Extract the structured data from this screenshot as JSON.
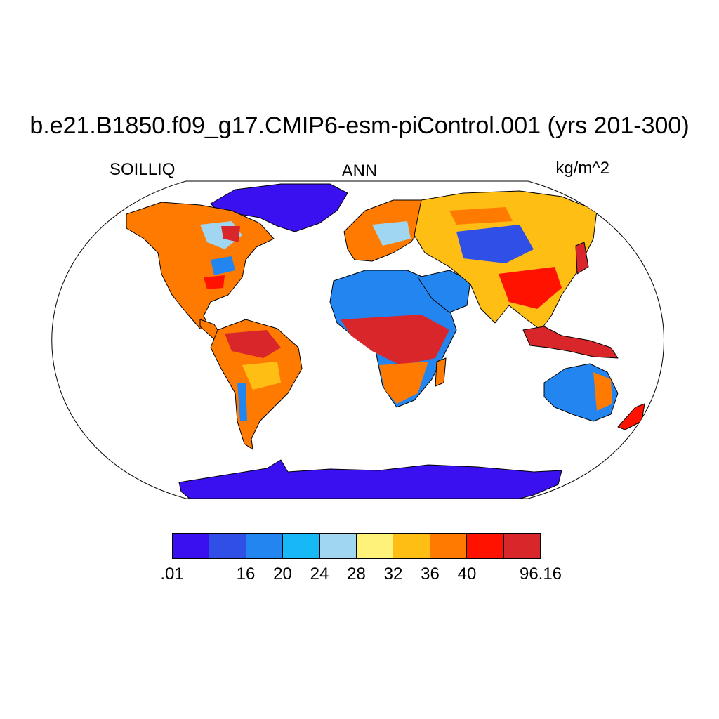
{
  "title": "b.e21.B1850.f09_g17.CMIP6-esm-piControl.001 (yrs 201-300)",
  "labels": {
    "left": "SOILLIQ",
    "center": "ANN",
    "right": "kg/m^2"
  },
  "colorbar": {
    "colors": [
      "#3a10f0",
      "#2f4fe6",
      "#2285f0",
      "#16b8f5",
      "#a0d6f0",
      "#fff27a",
      "#ffbe14",
      "#ff7a00",
      "#ff1300",
      "#d8262a"
    ],
    "labels": [
      ".01",
      "",
      "16",
      "20",
      "24",
      "28",
      "32",
      "36",
      "40",
      "",
      "96.16"
    ]
  },
  "map_legend": {
    "variable": "SOILLIQ",
    "season": "ANN",
    "units": "kg/m^2"
  }
}
